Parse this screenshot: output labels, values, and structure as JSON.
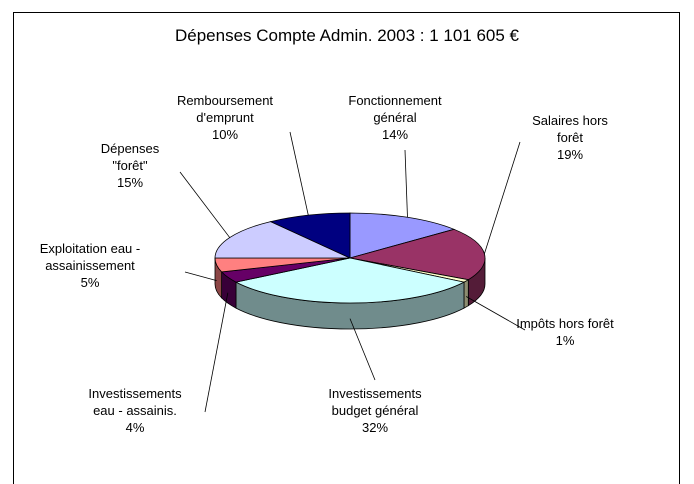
{
  "chart_data": {
    "type": "pie",
    "title": "Dépenses Compte Admin. 2003 : 1 101 605 €",
    "categories": [
      "Fonctionnement\ngénéral",
      "Salaires  hors\nforêt",
      "Impôts  hors forêt",
      "Investissements\nbudget général",
      "Investissements\neau - assainis.",
      "Exploitation eau -\nassainissement",
      "Dépenses\n\"forêt\"",
      "Remboursement\nd'emprunt"
    ],
    "values": [
      14,
      19,
      1,
      32,
      4,
      5,
      15,
      10
    ],
    "value_labels": [
      "14%",
      "19%",
      "1%",
      "32%",
      "4%",
      "5%",
      "15%",
      "10%"
    ],
    "colors": [
      "#9999ff",
      "#993366",
      "#ffffcc",
      "#ccffff",
      "#660066",
      "#ff8080",
      "#ccccff",
      "#000080"
    ]
  }
}
